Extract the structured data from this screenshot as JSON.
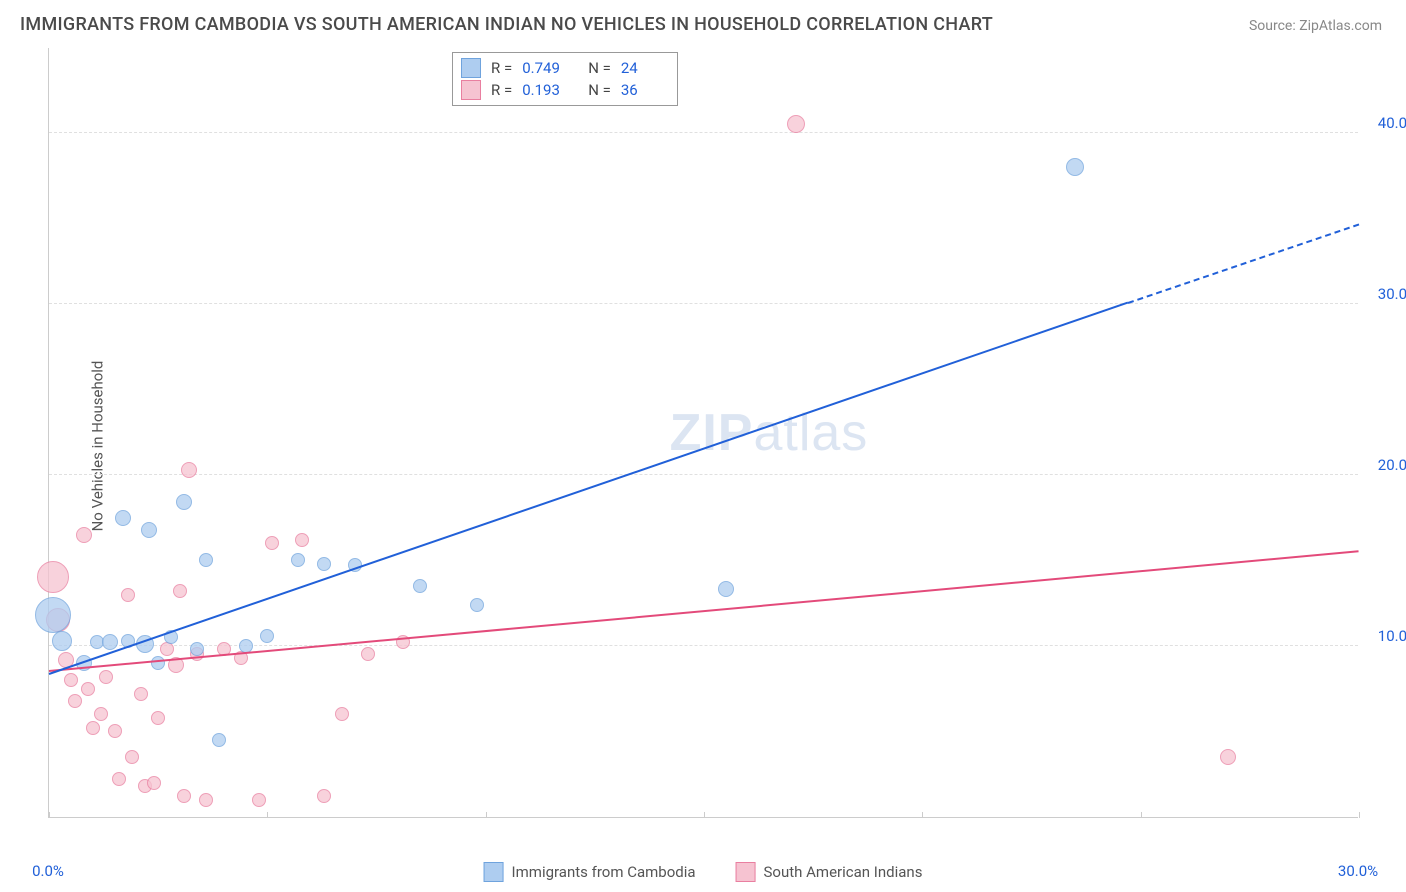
{
  "title": "IMMIGRANTS FROM CAMBODIA VS SOUTH AMERICAN INDIAN NO VEHICLES IN HOUSEHOLD CORRELATION CHART",
  "source": "Source: ZipAtlas.com",
  "watermark_a": "ZIP",
  "watermark_b": "atlas",
  "y_axis_label": "No Vehicles in Household",
  "chart": {
    "type": "scatter-with-trend",
    "background_color": "#ffffff",
    "grid_color": "#e0e0e0",
    "axis_color": "#cccccc",
    "tick_label_color": "#2160d8",
    "xlim": [
      0,
      30
    ],
    "ylim": [
      0,
      45
    ],
    "x_ticks": [
      0,
      5,
      10,
      15,
      20,
      25,
      30
    ],
    "x_tick_labels": [
      "0.0%",
      "",
      "",
      "",
      "",
      "",
      "30.0%"
    ],
    "y_grid": [
      10,
      20,
      30,
      40
    ],
    "y_tick_labels": [
      "10.0%",
      "20.0%",
      "30.0%",
      "40.0%"
    ],
    "label_fontsize": 15
  },
  "series": [
    {
      "name": "Immigrants from Cambodia",
      "fill_color": "#aecdf0",
      "stroke_color": "#6fa3dd",
      "trend_color": "#2160d8",
      "r": 0.749,
      "n": 24,
      "trend": {
        "x1": 0,
        "y1": 8.3,
        "x2": 24.7,
        "y2": 30.0,
        "x2_dash": 30,
        "y2_dash": 34.6
      },
      "points": [
        {
          "x": 0.1,
          "y": 11.8,
          "r": 18
        },
        {
          "x": 0.3,
          "y": 10.3,
          "r": 10
        },
        {
          "x": 0.8,
          "y": 9.0,
          "r": 8
        },
        {
          "x": 1.1,
          "y": 10.2,
          "r": 7
        },
        {
          "x": 1.4,
          "y": 10.2,
          "r": 8
        },
        {
          "x": 1.8,
          "y": 10.3,
          "r": 7
        },
        {
          "x": 1.7,
          "y": 17.5,
          "r": 8
        },
        {
          "x": 2.2,
          "y": 10.1,
          "r": 9
        },
        {
          "x": 2.3,
          "y": 16.8,
          "r": 8
        },
        {
          "x": 2.5,
          "y": 9.0,
          "r": 7
        },
        {
          "x": 2.8,
          "y": 10.5,
          "r": 7
        },
        {
          "x": 3.1,
          "y": 18.4,
          "r": 8
        },
        {
          "x": 3.4,
          "y": 9.8,
          "r": 7
        },
        {
          "x": 3.6,
          "y": 15.0,
          "r": 7
        },
        {
          "x": 3.9,
          "y": 4.5,
          "r": 7
        },
        {
          "x": 4.5,
          "y": 10.0,
          "r": 7
        },
        {
          "x": 5.0,
          "y": 10.6,
          "r": 7
        },
        {
          "x": 5.7,
          "y": 15.0,
          "r": 7
        },
        {
          "x": 6.3,
          "y": 14.8,
          "r": 7
        },
        {
          "x": 7.0,
          "y": 14.7,
          "r": 7
        },
        {
          "x": 8.5,
          "y": 13.5,
          "r": 7
        },
        {
          "x": 9.8,
          "y": 12.4,
          "r": 7
        },
        {
          "x": 15.5,
          "y": 13.3,
          "r": 8
        },
        {
          "x": 23.5,
          "y": 38.0,
          "r": 9
        }
      ]
    },
    {
      "name": "South American Indians",
      "fill_color": "#f6c3d1",
      "stroke_color": "#e97fa0",
      "trend_color": "#e34a7a",
      "r": 0.193,
      "n": 36,
      "trend": {
        "x1": 0,
        "y1": 8.5,
        "x2": 30,
        "y2": 15.5
      },
      "points": [
        {
          "x": 0.1,
          "y": 14.0,
          "r": 16
        },
        {
          "x": 0.2,
          "y": 11.5,
          "r": 12
        },
        {
          "x": 0.4,
          "y": 9.2,
          "r": 8
        },
        {
          "x": 0.5,
          "y": 8.0,
          "r": 7
        },
        {
          "x": 0.6,
          "y": 6.8,
          "r": 7
        },
        {
          "x": 0.8,
          "y": 16.5,
          "r": 8
        },
        {
          "x": 0.9,
          "y": 7.5,
          "r": 7
        },
        {
          "x": 1.0,
          "y": 5.2,
          "r": 7
        },
        {
          "x": 1.2,
          "y": 6.0,
          "r": 7
        },
        {
          "x": 1.3,
          "y": 8.2,
          "r": 7
        },
        {
          "x": 1.5,
          "y": 5.0,
          "r": 7
        },
        {
          "x": 1.6,
          "y": 2.2,
          "r": 7
        },
        {
          "x": 1.8,
          "y": 13.0,
          "r": 7
        },
        {
          "x": 1.9,
          "y": 3.5,
          "r": 7
        },
        {
          "x": 2.1,
          "y": 7.2,
          "r": 7
        },
        {
          "x": 2.2,
          "y": 1.8,
          "r": 7
        },
        {
          "x": 2.4,
          "y": 2.0,
          "r": 7
        },
        {
          "x": 2.5,
          "y": 5.8,
          "r": 7
        },
        {
          "x": 2.7,
          "y": 9.8,
          "r": 7
        },
        {
          "x": 2.9,
          "y": 8.9,
          "r": 8
        },
        {
          "x": 3.0,
          "y": 13.2,
          "r": 7
        },
        {
          "x": 3.1,
          "y": 1.2,
          "r": 7
        },
        {
          "x": 3.2,
          "y": 20.3,
          "r": 8
        },
        {
          "x": 3.4,
          "y": 9.5,
          "r": 7
        },
        {
          "x": 3.6,
          "y": 1.0,
          "r": 7
        },
        {
          "x": 4.0,
          "y": 9.8,
          "r": 7
        },
        {
          "x": 4.4,
          "y": 9.3,
          "r": 7
        },
        {
          "x": 4.8,
          "y": 1.0,
          "r": 7
        },
        {
          "x": 5.1,
          "y": 16.0,
          "r": 7
        },
        {
          "x": 5.8,
          "y": 16.2,
          "r": 7
        },
        {
          "x": 6.3,
          "y": 1.2,
          "r": 7
        },
        {
          "x": 6.7,
          "y": 6.0,
          "r": 7
        },
        {
          "x": 7.3,
          "y": 9.5,
          "r": 7
        },
        {
          "x": 8.1,
          "y": 10.2,
          "r": 7
        },
        {
          "x": 17.1,
          "y": 40.5,
          "r": 9
        },
        {
          "x": 27.0,
          "y": 3.5,
          "r": 8
        }
      ]
    }
  ],
  "legend_box": {
    "rows": [
      {
        "swatch_fill": "#aecdf0",
        "swatch_stroke": "#6fa3dd",
        "r_label": "R =",
        "r_val": "0.749",
        "n_label": "N =",
        "n_val": "24"
      },
      {
        "swatch_fill": "#f6c3d1",
        "swatch_stroke": "#e97fa0",
        "r_label": "R =",
        "r_val": "0.193",
        "n_label": "N =",
        "n_val": "36"
      }
    ]
  },
  "bottom_legend": [
    {
      "swatch_fill": "#aecdf0",
      "swatch_stroke": "#6fa3dd",
      "label": "Immigrants from Cambodia"
    },
    {
      "swatch_fill": "#f6c3d1",
      "swatch_stroke": "#e97fa0",
      "label": "South American Indians"
    }
  ]
}
